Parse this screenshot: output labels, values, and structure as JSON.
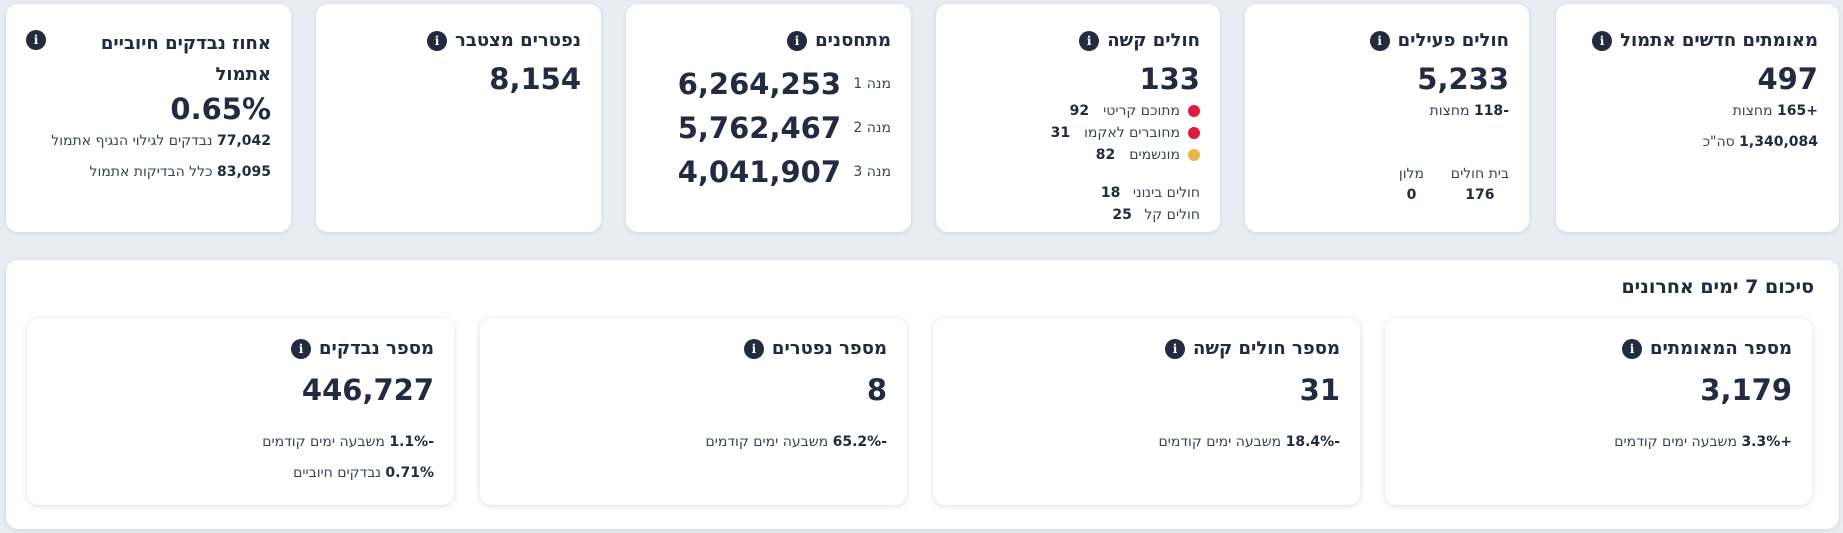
{
  "cards": {
    "new_verified": {
      "title": "מאומתים חדשים אתמול",
      "value": "497",
      "midnight_delta": "+165",
      "midnight_label": "מחצות",
      "total_value": "1,340,084",
      "total_label": "סה\"כ"
    },
    "active": {
      "title": "חולים פעילים",
      "value": "5,233",
      "midnight_delta": "-118",
      "midnight_label": "מחצות",
      "hospital_label": "בית חולים",
      "hospital_value": "176",
      "hotel_label": "מלון",
      "hotel_value": "0"
    },
    "severe": {
      "title": "חולים קשה",
      "value": "133",
      "items": [
        {
          "label": "מתוכם קריטי",
          "value": "92",
          "color": "#e0193f"
        },
        {
          "label": "מחוברים לאקמו",
          "value": "31",
          "color": "#e0193f"
        },
        {
          "label": "מונשמים",
          "value": "82",
          "color": "#e8b54b"
        }
      ],
      "moderate_label": "חולים בינוני",
      "moderate_value": "18",
      "mild_label": "חולים קל",
      "mild_value": "25"
    },
    "vaccinated": {
      "title": "מתחסנים",
      "doses": [
        {
          "label": "מנה 1",
          "value": "6,264,253"
        },
        {
          "label": "מנה 2",
          "value": "5,762,467"
        },
        {
          "label": "מנה 3",
          "value": "4,041,907"
        }
      ]
    },
    "deaths": {
      "title": "נפטרים מצטבר",
      "value": "8,154"
    },
    "positive_rate": {
      "title": "אחוז נבדקים חיוביים אתמול",
      "value": "0.65%",
      "line1_value": "77,042",
      "line1_label": "נבדקים לגילוי הנגיף אתמול",
      "line2_value": "83,095",
      "line2_label": "כלל הבדיקות אתמול"
    }
  },
  "summary": {
    "title": "סיכום 7 ימים אחרונים",
    "cards": [
      {
        "title": "מספר המאומתים",
        "value": "3,179",
        "change": "+3.3%",
        "change_label": "משבעה ימים קודמים"
      },
      {
        "title": "מספר חולים קשה",
        "value": "31",
        "change": "-18.4%",
        "change_label": "משבעה ימים קודמים"
      },
      {
        "title": "מספר נפטרים",
        "value": "8",
        "change": "-65.2%",
        "change_label": "משבעה ימים קודמים"
      },
      {
        "title": "מספר נבדקים",
        "value": "446,727",
        "change": "-1.1%",
        "change_label": "משבעה ימים קודמים",
        "extra_value": "0.71%",
        "extra_label": "נבדקים חיוביים"
      }
    ]
  },
  "info_glyph": "i"
}
